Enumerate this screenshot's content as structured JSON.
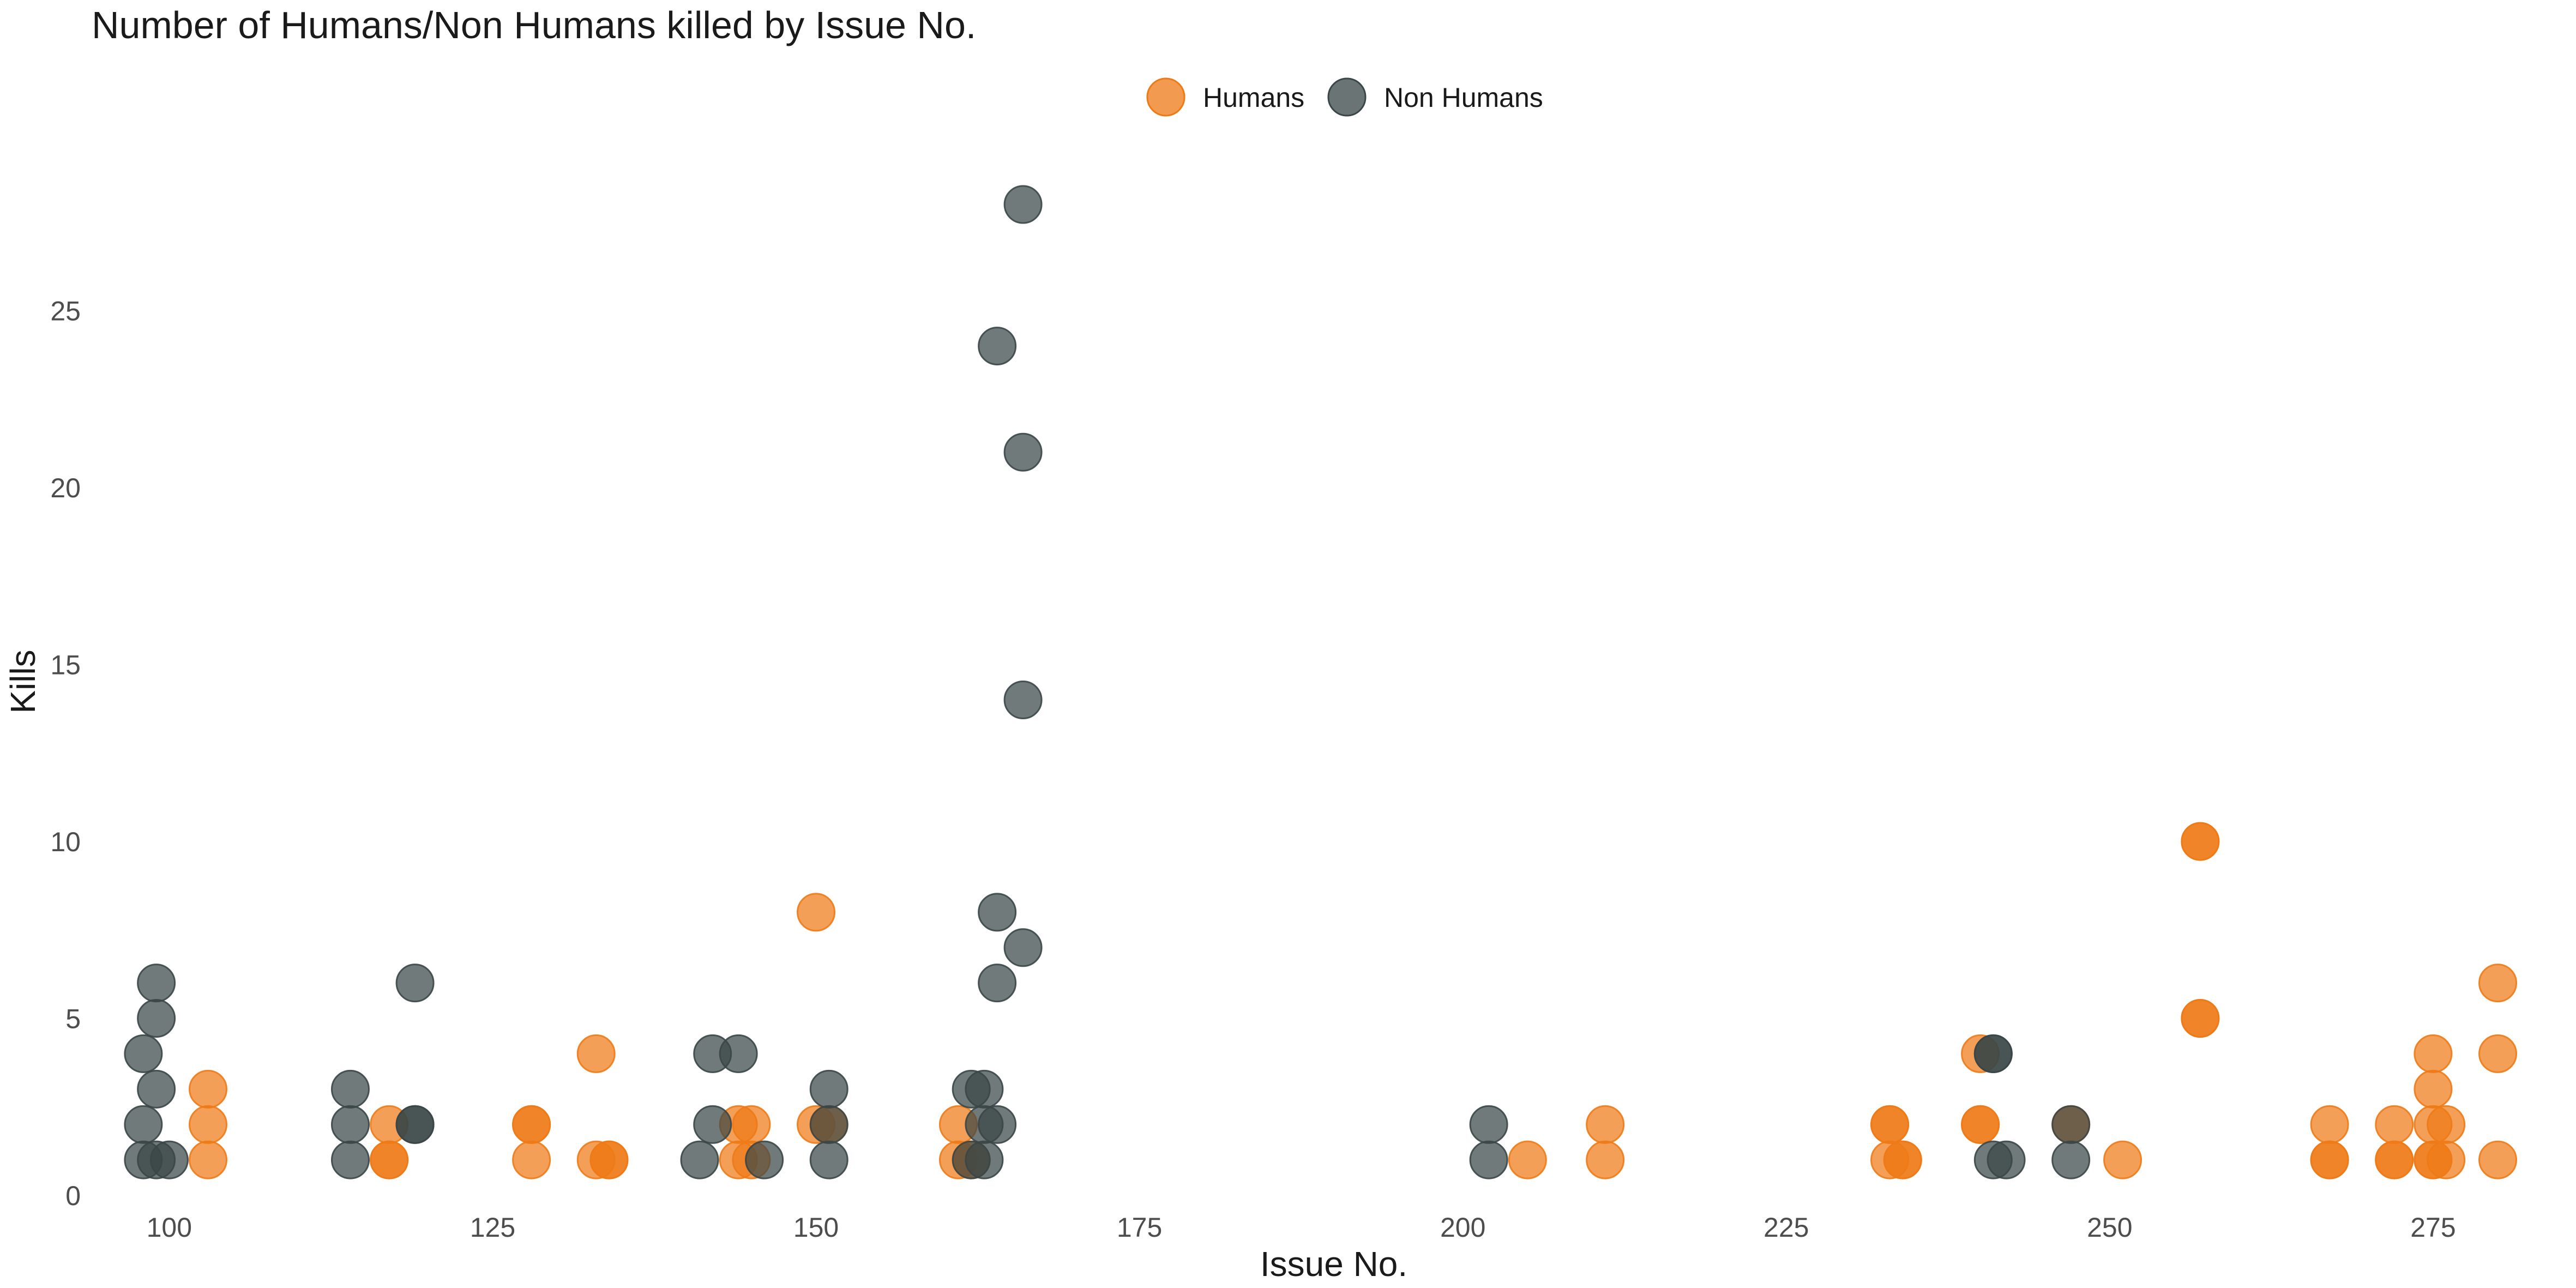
{
  "chart_data": {
    "type": "scatter",
    "title": "Number of Humans/Non Humans killed by Issue No.",
    "xlabel": "Issue No.",
    "ylabel": "Kills",
    "xlim": [
      94,
      282
    ],
    "ylim": [
      0,
      28
    ],
    "xticks": [
      100,
      125,
      150,
      175,
      200,
      225,
      250,
      275
    ],
    "yticks": [
      0,
      5,
      10,
      15,
      20,
      25
    ],
    "grid": false,
    "legend_position": "top",
    "series": [
      {
        "name": "Humans",
        "color": "#ee7a16",
        "points": [
          {
            "x": 103,
            "y": 1
          },
          {
            "x": 103,
            "y": 2
          },
          {
            "x": 103,
            "y": 3
          },
          {
            "x": 117,
            "y": 1
          },
          {
            "x": 117,
            "y": 1
          },
          {
            "x": 117,
            "y": 2
          },
          {
            "x": 128,
            "y": 1
          },
          {
            "x": 128,
            "y": 2
          },
          {
            "x": 128,
            "y": 2
          },
          {
            "x": 133,
            "y": 1
          },
          {
            "x": 133,
            "y": 4
          },
          {
            "x": 134,
            "y": 1
          },
          {
            "x": 134,
            "y": 1
          },
          {
            "x": 144,
            "y": 1
          },
          {
            "x": 144,
            "y": 2
          },
          {
            "x": 145,
            "y": 1
          },
          {
            "x": 145,
            "y": 2
          },
          {
            "x": 150,
            "y": 2
          },
          {
            "x": 150,
            "y": 8
          },
          {
            "x": 151,
            "y": 2
          },
          {
            "x": 161,
            "y": 1
          },
          {
            "x": 161,
            "y": 2
          },
          {
            "x": 162,
            "y": 1
          },
          {
            "x": 205,
            "y": 1
          },
          {
            "x": 211,
            "y": 1
          },
          {
            "x": 211,
            "y": 2
          },
          {
            "x": 233,
            "y": 1
          },
          {
            "x": 233,
            "y": 2
          },
          {
            "x": 233,
            "y": 2
          },
          {
            "x": 234,
            "y": 1
          },
          {
            "x": 234,
            "y": 1
          },
          {
            "x": 240,
            "y": 2
          },
          {
            "x": 240,
            "y": 2
          },
          {
            "x": 240,
            "y": 4
          },
          {
            "x": 247,
            "y": 2
          },
          {
            "x": 251,
            "y": 1
          },
          {
            "x": 257,
            "y": 5
          },
          {
            "x": 257,
            "y": 5
          },
          {
            "x": 257,
            "y": 10
          },
          {
            "x": 257,
            "y": 10
          },
          {
            "x": 267,
            "y": 1
          },
          {
            "x": 267,
            "y": 1
          },
          {
            "x": 267,
            "y": 2
          },
          {
            "x": 272,
            "y": 1
          },
          {
            "x": 272,
            "y": 1
          },
          {
            "x": 272,
            "y": 2
          },
          {
            "x": 275,
            "y": 1
          },
          {
            "x": 275,
            "y": 1
          },
          {
            "x": 275,
            "y": 2
          },
          {
            "x": 275,
            "y": 3
          },
          {
            "x": 275,
            "y": 4
          },
          {
            "x": 276,
            "y": 1
          },
          {
            "x": 276,
            "y": 2
          },
          {
            "x": 280,
            "y": 1
          },
          {
            "x": 280,
            "y": 4
          },
          {
            "x": 280,
            "y": 6
          }
        ]
      },
      {
        "name": "Non Humans",
        "color": "#3a4647",
        "points": [
          {
            "x": 98,
            "y": 1
          },
          {
            "x": 98,
            "y": 2
          },
          {
            "x": 98,
            "y": 4
          },
          {
            "x": 99,
            "y": 1
          },
          {
            "x": 99,
            "y": 3
          },
          {
            "x": 99,
            "y": 5
          },
          {
            "x": 99,
            "y": 6
          },
          {
            "x": 100,
            "y": 1
          },
          {
            "x": 114,
            "y": 1
          },
          {
            "x": 114,
            "y": 2
          },
          {
            "x": 114,
            "y": 3
          },
          {
            "x": 119,
            "y": 2
          },
          {
            "x": 119,
            "y": 2
          },
          {
            "x": 119,
            "y": 6
          },
          {
            "x": 141,
            "y": 1
          },
          {
            "x": 142,
            "y": 2
          },
          {
            "x": 142,
            "y": 4
          },
          {
            "x": 144,
            "y": 4
          },
          {
            "x": 146,
            "y": 1
          },
          {
            "x": 151,
            "y": 1
          },
          {
            "x": 151,
            "y": 2
          },
          {
            "x": 151,
            "y": 3
          },
          {
            "x": 162,
            "y": 1
          },
          {
            "x": 162,
            "y": 3
          },
          {
            "x": 163,
            "y": 1
          },
          {
            "x": 163,
            "y": 2
          },
          {
            "x": 163,
            "y": 3
          },
          {
            "x": 164,
            "y": 2
          },
          {
            "x": 164,
            "y": 6
          },
          {
            "x": 164,
            "y": 8
          },
          {
            "x": 164,
            "y": 24
          },
          {
            "x": 166,
            "y": 7
          },
          {
            "x": 166,
            "y": 14
          },
          {
            "x": 166,
            "y": 21
          },
          {
            "x": 166,
            "y": 28
          },
          {
            "x": 202,
            "y": 1
          },
          {
            "x": 202,
            "y": 2
          },
          {
            "x": 241,
            "y": 1
          },
          {
            "x": 241,
            "y": 4
          },
          {
            "x": 241,
            "y": 4
          },
          {
            "x": 242,
            "y": 1
          },
          {
            "x": 247,
            "y": 1
          },
          {
            "x": 247,
            "y": 2
          }
        ]
      }
    ]
  }
}
